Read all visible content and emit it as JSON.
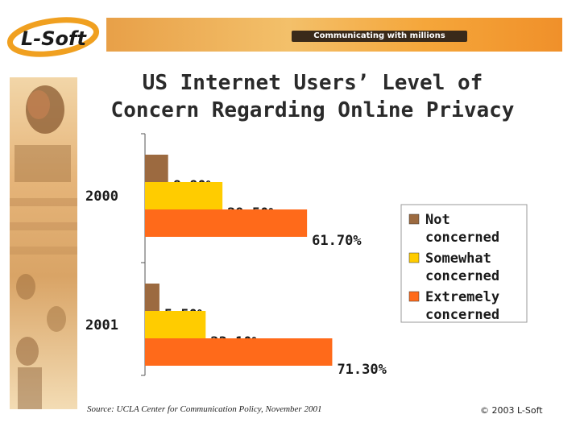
{
  "header": {
    "logo_text": "L-Soft",
    "tagline": "Communicating with millions"
  },
  "title_line1": "US Internet Users’ Level of",
  "title_line2": "Concern Regarding Online Privacy",
  "source": "Source: UCLA Center for Communication Policy, November 2001",
  "copyright": "© 2003 L-Soft",
  "colors": {
    "not_concerned": "#9c6a40",
    "somewhat_concerned": "#ffcc00",
    "extremely_concerned": "#ff6a1a",
    "banner_orange": "#f0a040"
  },
  "chart_data": {
    "type": "bar",
    "orientation": "horizontal",
    "categories": [
      "2000",
      "2001"
    ],
    "series": [
      {
        "name": "Not concerned",
        "values": [
          8.8,
          5.5
        ],
        "labels": [
          "8.80%",
          "5.50%"
        ]
      },
      {
        "name": "Somewhat concerned",
        "values": [
          29.5,
          23.1
        ],
        "labels": [
          "29.50%",
          "23.10%"
        ]
      },
      {
        "name": "Extremely concerned",
        "values": [
          61.7,
          71.3
        ],
        "labels": [
          "61.70%",
          "71.30%"
        ]
      }
    ],
    "legend": {
      "position": "right",
      "entries": [
        {
          "line1": "Not",
          "line2": "concerned"
        },
        {
          "line1": "Somewhat",
          "line2": "concerned"
        },
        {
          "line1": "Extremely",
          "line2": "concerned"
        }
      ]
    },
    "xlim": [
      0,
      100
    ],
    "grid": false
  }
}
